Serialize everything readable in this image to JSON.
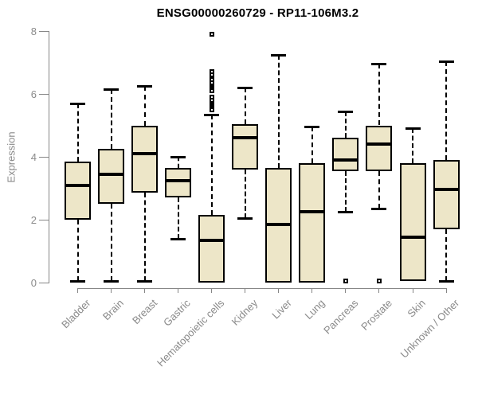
{
  "title": "ENSG00000260729 - RP11-106M3.2",
  "colors": {
    "box_fill": "#EDE6C8",
    "box_border": "#000000",
    "median": "#000000",
    "axis": "#868686",
    "axis_text": "#8a8a8a",
    "title_text": "#000000",
    "background": "#ffffff"
  },
  "chart_data": {
    "type": "boxplot",
    "title": "ENSG00000260729 - RP11-106M3.2",
    "xlabel": "",
    "ylabel": "Expression",
    "ylim": [
      0,
      8
    ],
    "yticks": [
      0,
      2,
      4,
      6,
      8
    ],
    "grid": false,
    "legend": false,
    "x_tick_rotation": 45,
    "categories": [
      "Bladder",
      "Brain",
      "Breast",
      "Gastric",
      "Hematopoietic cells",
      "Kidney",
      "Liver",
      "Lung",
      "Pancreas",
      "Prostate",
      "Skin",
      "Unknown / Other"
    ],
    "series": [
      {
        "name": "Bladder",
        "whisker_low": 0.05,
        "q1": 2.0,
        "median": 3.1,
        "q3": 3.85,
        "whisker_high": 5.7,
        "outliers": []
      },
      {
        "name": "Brain",
        "whisker_low": 0.05,
        "q1": 2.5,
        "median": 3.45,
        "q3": 4.25,
        "whisker_high": 6.15,
        "outliers": []
      },
      {
        "name": "Breast",
        "whisker_low": 0.05,
        "q1": 2.85,
        "median": 4.1,
        "q3": 5.0,
        "whisker_high": 6.25,
        "outliers": []
      },
      {
        "name": "Gastric",
        "whisker_low": 1.4,
        "q1": 2.7,
        "median": 3.25,
        "q3": 3.65,
        "whisker_high": 4.0,
        "outliers": []
      },
      {
        "name": "Hematopoietic cells",
        "whisker_low": 0.0,
        "q1": 0.0,
        "median": 1.35,
        "q3": 2.15,
        "whisker_high": 5.35,
        "outliers": [
          5.5,
          5.6,
          5.65,
          5.7,
          5.75,
          5.8,
          5.9,
          6.1,
          6.2,
          6.25,
          6.3,
          6.35,
          6.45,
          6.55,
          6.6,
          6.7,
          7.9
        ]
      },
      {
        "name": "Kidney",
        "whisker_low": 2.05,
        "q1": 3.6,
        "median": 4.6,
        "q3": 5.05,
        "whisker_high": 6.2,
        "outliers": []
      },
      {
        "name": "Liver",
        "whisker_low": 0.0,
        "q1": 0.0,
        "median": 1.85,
        "q3": 3.65,
        "whisker_high": 7.25,
        "outliers": []
      },
      {
        "name": "Lung",
        "whisker_low": 0.0,
        "q1": 0.0,
        "median": 2.25,
        "q3": 3.8,
        "whisker_high": 4.95,
        "outliers": []
      },
      {
        "name": "Pancreas",
        "whisker_low": 2.25,
        "q1": 3.55,
        "median": 3.9,
        "q3": 4.6,
        "whisker_high": 5.45,
        "outliers": [
          0.05
        ]
      },
      {
        "name": "Prostate",
        "whisker_low": 2.35,
        "q1": 3.55,
        "median": 4.4,
        "q3": 5.0,
        "whisker_high": 6.95,
        "outliers": [
          0.05
        ]
      },
      {
        "name": "Skin",
        "whisker_low": 0.05,
        "q1": 0.05,
        "median": 1.45,
        "q3": 3.8,
        "whisker_high": 4.9,
        "outliers": []
      },
      {
        "name": "Unknown / Other",
        "whisker_low": 0.05,
        "q1": 1.7,
        "median": 2.95,
        "q3": 3.9,
        "whisker_high": 7.05,
        "outliers": []
      }
    ]
  }
}
